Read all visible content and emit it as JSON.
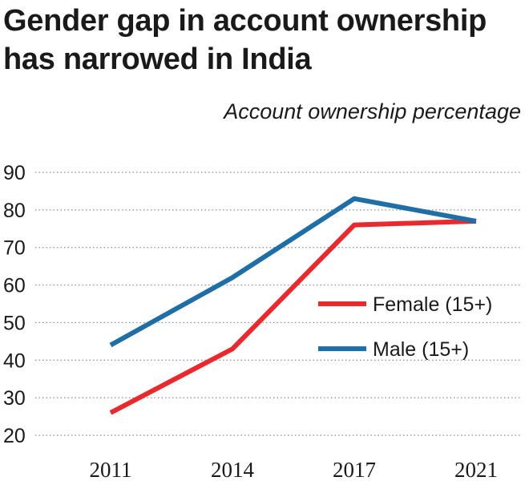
{
  "title": "Gender gap in account ownership has narrowed in India",
  "subtitle": "Account ownership percentage",
  "chart_data": {
    "type": "line",
    "title": "Gender gap in account ownership has narrowed in India",
    "subtitle": "Account ownership percentage",
    "xlabel": "",
    "ylabel": "",
    "x": [
      "2011",
      "2014",
      "2017",
      "2021"
    ],
    "yticks": [
      20,
      30,
      40,
      50,
      60,
      70,
      80,
      90
    ],
    "ylim": [
      20,
      90
    ],
    "grid": "horizontal dotted",
    "legend_placement": "right-middle",
    "series": [
      {
        "name": "Female (15+)",
        "color": "#e8292e",
        "values": [
          26,
          43,
          76,
          77
        ]
      },
      {
        "name": "Male (15+)",
        "color": "#1f6ea6",
        "values": [
          44,
          62,
          83,
          77
        ]
      }
    ]
  }
}
